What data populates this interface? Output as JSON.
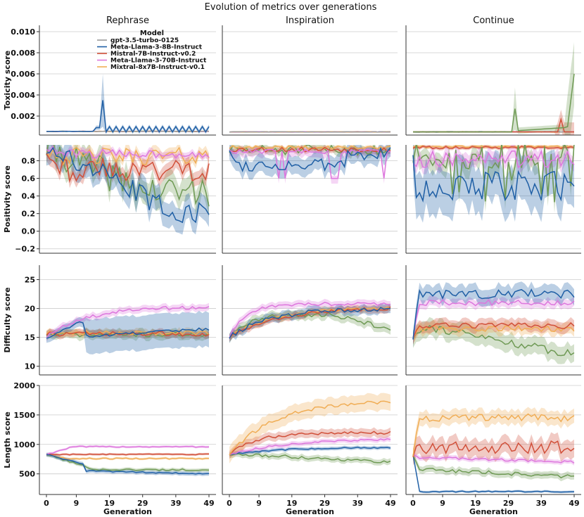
{
  "chart_data": {
    "type": "line",
    "title": "Evolution of metrics over generations",
    "columns": [
      "Rephrase",
      "Inspiration",
      "Continue"
    ],
    "xlabel": "Generation",
    "xticks": [
      0,
      9,
      19,
      29,
      39,
      49
    ],
    "x_range": [
      0,
      49
    ],
    "legend": {
      "title": "Model",
      "placement": "upper-left of first panel",
      "entries": [
        {
          "name": "gpt-3.5-turbo-0125",
          "color": "#999999"
        },
        {
          "name": "Meta-Llama-3-8B-Instruct",
          "color": "#1f5fa5"
        },
        {
          "name": "Mistral-7B-Instruct-v0.2",
          "color": "#d1503a"
        },
        {
          "name": "Meta-Llama-3-70B-Instruct",
          "color": "#dd77dd"
        },
        {
          "name": "Mixtral-8x7B-Instruct-v0.1",
          "color": "#f0ad55"
        }
      ],
      "extra_series": [
        {
          "name": "(unlabeled green series)",
          "color": "#6f9a55"
        }
      ]
    },
    "rows": [
      {
        "metric": "Toxicity score",
        "ylim": [
          0.0002,
          0.0106
        ],
        "yticks": [
          0.002,
          0.004,
          0.006,
          0.008,
          0.01
        ],
        "yticklabels": [
          "0.002",
          "0.004",
          "0.006",
          "0.008",
          "0.010"
        ]
      },
      {
        "metric": "Positivity score",
        "ylim": [
          -0.25,
          0.98
        ],
        "yticks": [
          -0.2,
          0.0,
          0.2,
          0.4,
          0.6,
          0.8
        ],
        "yticklabels": [
          "−0.2",
          "0.0",
          "0.2",
          "0.4",
          "0.6",
          "0.8"
        ]
      },
      {
        "metric": "Difficulty score",
        "ylim": [
          8.5,
          27.5
        ],
        "yticks": [
          10,
          15,
          20,
          25
        ],
        "yticklabels": [
          "10",
          "15",
          "20",
          "25"
        ]
      },
      {
        "metric": "Length score",
        "ylim": [
          150,
          2000
        ],
        "yticks": [
          500,
          1000,
          1500,
          2000
        ],
        "yticklabels": [
          "500",
          "1000",
          "1500",
          "2000"
        ]
      }
    ],
    "series_shapes": {
      "note": "Approximate mean values per series; bands show uncertainty",
      "toxicity": {
        "Rephrase": {
          "llama8b_spike": {
            "x": 17,
            "y": 0.0035
          },
          "llama8b_oscillation": [
            0.0005,
            0.001
          ],
          "others": 0.00055
        },
        "Inspiration": {
          "all": 0.0005
        },
        "Continue": {
          "green_end": 0.006,
          "green_spike": {
            "x": 31,
            "y": 0.0027
          },
          "red_spike": {
            "x": 45,
            "y": 0.0017
          },
          "others": 0.0005
        }
      },
      "positivity": {
        "Rephrase": {
          "start": 0.95,
          "llama8b_end": 0.2,
          "llama70b": 0.88,
          "mixtral": 0.85,
          "mistral": 0.7,
          "green": 0.45
        },
        "Inspiration": {
          "most": 0.95,
          "llama8b": 0.75
        },
        "Continue": {
          "most": 0.96,
          "llama8b": 0.5,
          "llama70b": 0.82,
          "green": 0.85
        }
      },
      "difficulty": {
        "Rephrase": {
          "start": 15,
          "llama70b_end": 20.3,
          "llama8b_end": 16.5,
          "others": 15.8
        },
        "Inspiration": {
          "start": 15,
          "most_end": 20.3,
          "green_end": 16.5
        },
        "Continue": {
          "start": 15,
          "llama8b": 22.5,
          "llama70b": 21,
          "mistral": 17,
          "mixtral": 16.5,
          "green_end": 12
        }
      },
      "length": {
        "Rephrase": {
          "start": 830,
          "llama70b": 960,
          "mistral": 830,
          "mixtral": 760,
          "green": 570,
          "llama8b_end": 500
        },
        "Inspiration": {
          "start": 830,
          "mixtral_end": 1750,
          "mistral": 1200,
          "llama70b": 1100,
          "llama8b": 950,
          "green_end": 700
        },
        "Continue": {
          "mixtral": 1450,
          "mistral": 950,
          "llama70b": 700,
          "green": 450,
          "llama8b": 200
        }
      }
    }
  }
}
